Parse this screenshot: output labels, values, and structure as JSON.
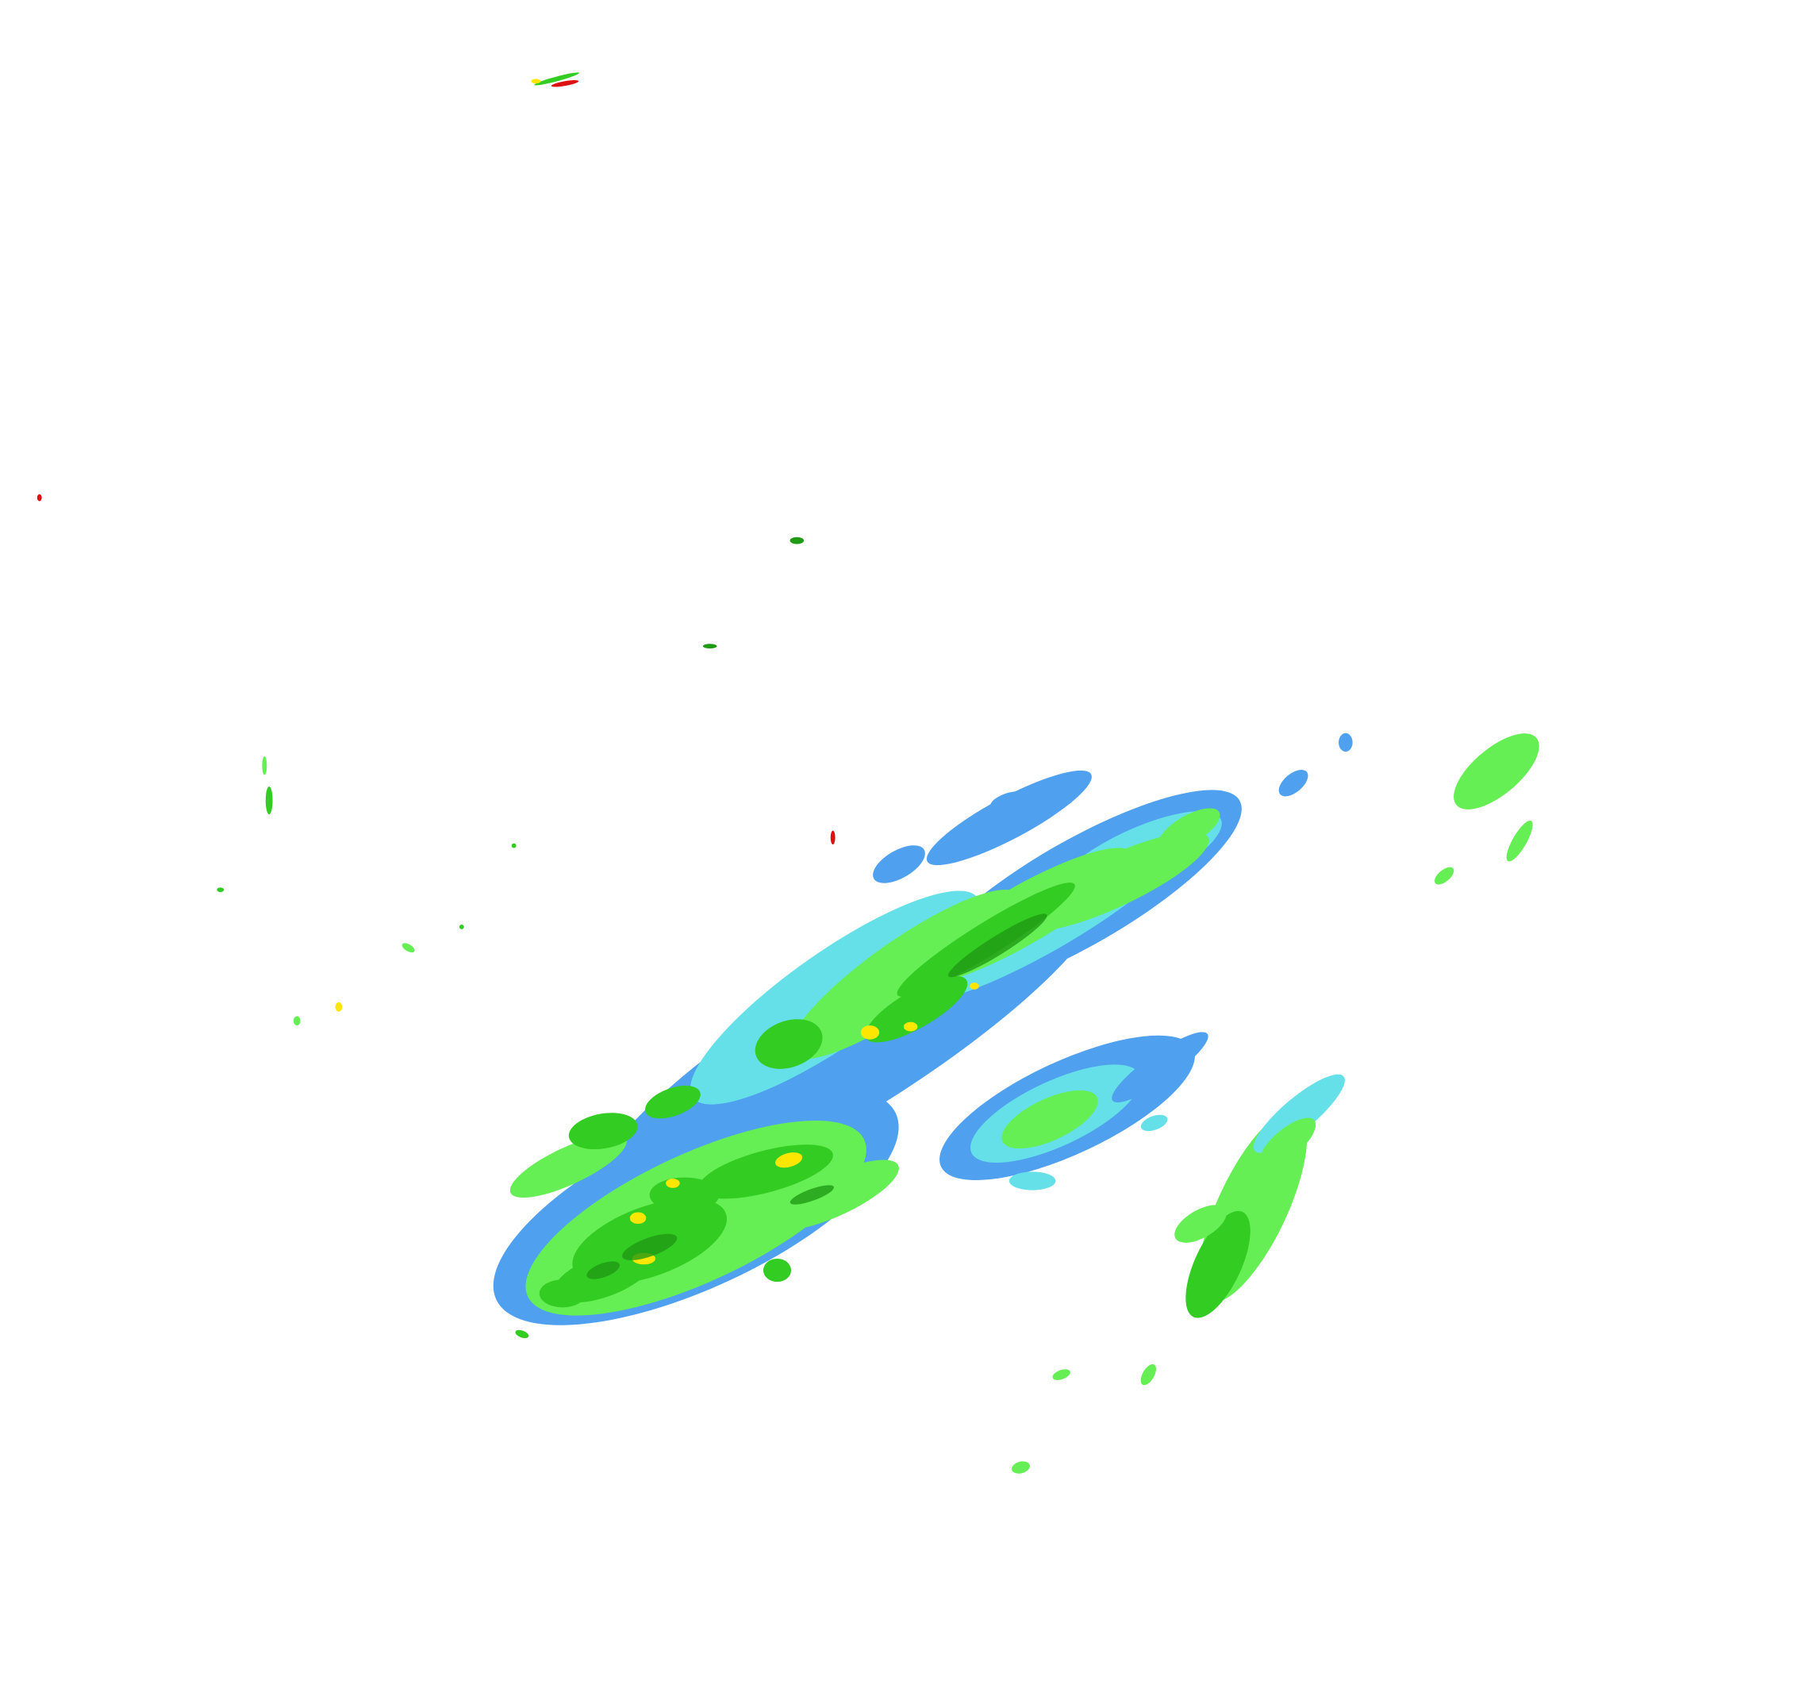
{
  "map": {
    "type": "weather radar reflectivity",
    "background": "#ffffff",
    "colors": {
      "light_blue": "#4fa0ee",
      "cyan": "#66e0e8",
      "light_green": "#66ee55",
      "green": "#33cc22",
      "dark_green": "#1f9a14",
      "yellow": "#ffe600",
      "red": "#dd1111"
    }
  }
}
